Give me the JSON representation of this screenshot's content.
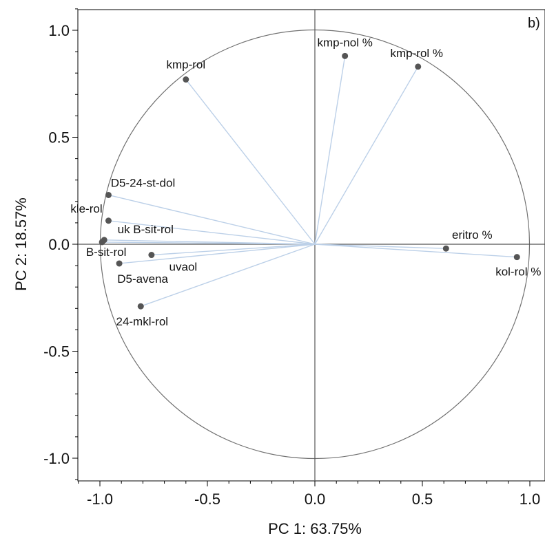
{
  "chart_data": {
    "type": "scatter",
    "title": "",
    "panel_label": "b)",
    "xlabel": "PC 1: 63.75%",
    "ylabel": "PC 2: 18.57%",
    "xlim": [
      -1.1,
      1.07
    ],
    "ylim": [
      -1.1,
      1.1
    ],
    "x_ticks": [
      -1.0,
      -0.5,
      0.0,
      0.5,
      1.0
    ],
    "x_tick_labels": [
      "-1.0",
      "-0.5",
      "0.0",
      "0.5",
      "1.0"
    ],
    "y_ticks": [
      1.0,
      0.5,
      0.0,
      -0.5,
      -1.0
    ],
    "y_tick_labels": [
      "1.0",
      "0.5",
      "0.0",
      "-0.5",
      "-1.0"
    ],
    "unit_circle": true,
    "grid": false,
    "colors": {
      "point": "#555555",
      "vector": "#bcd0e8",
      "circle": "#707070",
      "axis": "#000000"
    },
    "points": [
      {
        "label": "kmp-rol",
        "x": -0.6,
        "y": 0.77
      },
      {
        "label": "kmp-nol %",
        "x": 0.14,
        "y": 0.88
      },
      {
        "label": "kmp-rol %",
        "x": 0.48,
        "y": 0.83
      },
      {
        "label": "D5-24-st-dol",
        "x": -0.96,
        "y": 0.23
      },
      {
        "label": "kle-rol",
        "x": -0.96,
        "y": 0.11
      },
      {
        "label": "uk B-sit-rol",
        "x": -0.98,
        "y": 0.02
      },
      {
        "label": "B-sit-rol",
        "x": -0.99,
        "y": 0.01
      },
      {
        "label": "uvaol",
        "x": -0.76,
        "y": -0.05
      },
      {
        "label": "D5-avena",
        "x": -0.91,
        "y": -0.09
      },
      {
        "label": "24-mkl-rol",
        "x": -0.81,
        "y": -0.29
      },
      {
        "label": "eritro %",
        "x": 0.61,
        "y": -0.02
      },
      {
        "label": "kol-rol %",
        "x": 0.94,
        "y": -0.06
      }
    ]
  }
}
